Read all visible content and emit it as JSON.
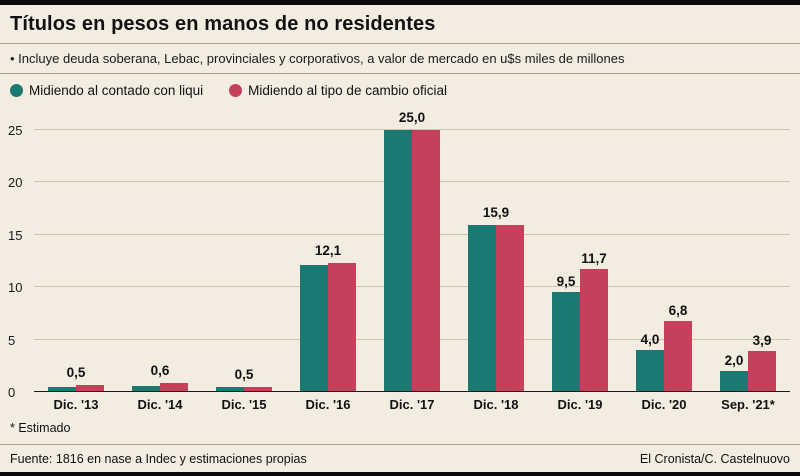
{
  "header": {
    "title": "Títulos en pesos en manos de no residentes"
  },
  "subtitle": "• Incluye deuda soberana, Lebac, provinciales y corporativos, a valor de mercado en u$s miles de millones",
  "legend": [
    {
      "label": "Midiendo al contado con liqui",
      "color": "#1a7a72"
    },
    {
      "label": "Midiendo al tipo de cambio oficial",
      "color": "#c5405a"
    }
  ],
  "footnote": "* Estimado",
  "footer": {
    "source": "Fuente: 1816 en nase a Indec y estimaciones propias",
    "credit": "El Cronista/C. Castelnuovo"
  },
  "chart_data": {
    "type": "bar",
    "title": "Títulos en pesos en manos de no residentes",
    "subtitle": "Incluye deuda soberana, Lebac, provinciales y corporativos, a valor de mercado en u$s miles de millones",
    "categories": [
      "Dic. '13",
      "Dic. '14",
      "Dic. '15",
      "Dic. '16",
      "Dic. '17",
      "Dic. '18",
      "Dic. '19",
      "Dic. '20",
      "Sep. '21*"
    ],
    "series": [
      {
        "name": "Midiendo al contado con liqui",
        "color": "#1a7a72",
        "values": [
          0.5,
          0.6,
          0.5,
          12.1,
          25.0,
          15.9,
          9.5,
          4.0,
          2.0
        ]
      },
      {
        "name": "Midiendo al tipo de cambio oficial",
        "color": "#c5405a",
        "values": [
          0.7,
          0.9,
          0.5,
          12.3,
          25.0,
          15.9,
          11.7,
          6.8,
          3.9
        ]
      }
    ],
    "data_labels": [
      {
        "center": "0,5"
      },
      {
        "center": "0,6"
      },
      {
        "center": "0,5"
      },
      {
        "center": "12,1"
      },
      {
        "center": "25,0"
      },
      {
        "center": "15,9"
      },
      {
        "left": "9,5",
        "right": "11,7"
      },
      {
        "left": "4,0",
        "right": "6,8"
      },
      {
        "left": "2,0",
        "right": "3,9"
      }
    ],
    "ylim": [
      0,
      25
    ],
    "yticks": [
      0,
      5,
      10,
      15,
      20,
      25
    ],
    "grid": true,
    "legend_position": "top"
  }
}
